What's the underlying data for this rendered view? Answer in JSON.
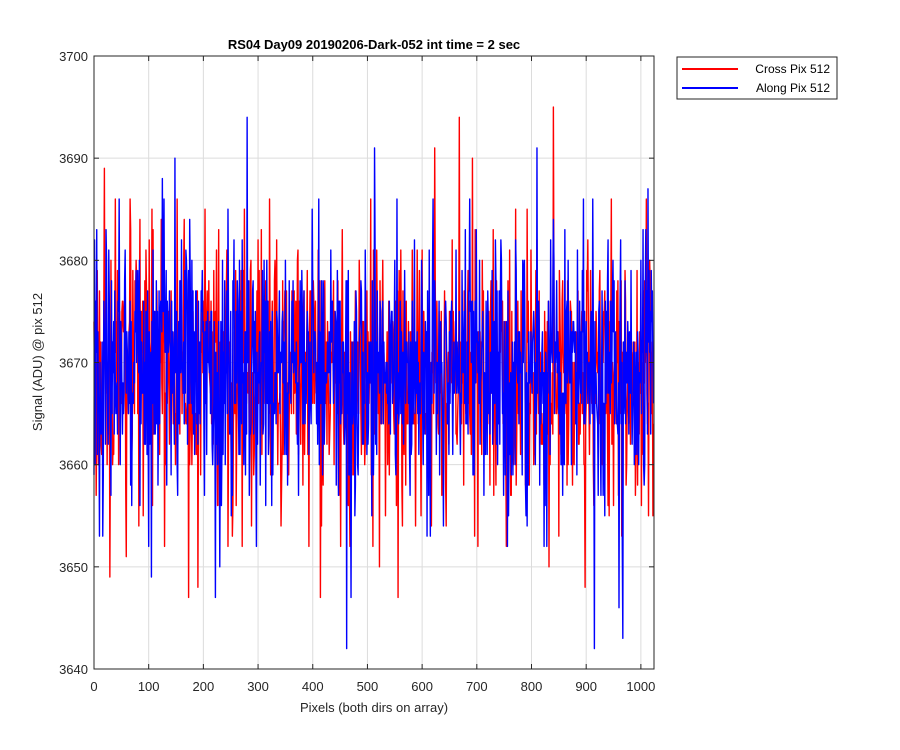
{
  "chart_data": {
    "type": "line",
    "title": "RS04 Day09 20190206-Dark-052 int time = 2 sec",
    "xlabel": "Pixels (both dirs on array)",
    "ylabel": "Signal (ADU) @ pix 512",
    "xlim": [
      0,
      1024
    ],
    "ylim": [
      3640,
      3700
    ],
    "xticks": [
      0,
      100,
      200,
      300,
      400,
      500,
      600,
      700,
      800,
      900,
      1000
    ],
    "yticks": [
      3640,
      3650,
      3660,
      3670,
      3680,
      3690,
      3700
    ],
    "xtick_labels": [
      "0",
      "100",
      "200",
      "300",
      "400",
      "500",
      "600",
      "700",
      "800",
      "900",
      "1000"
    ],
    "ytick_labels": [
      "3640",
      "3650",
      "3660",
      "3670",
      "3680",
      "3690",
      "3700"
    ],
    "grid": true,
    "legend_position": "outside-top-right",
    "noise_model": {
      "n_points": 1024,
      "mean": 3669,
      "std": 6.5
    },
    "series": [
      {
        "name": "Cross Pix 512",
        "color": "#ff0000",
        "seed": 17,
        "peaks": [
          [
            19,
            3689
          ],
          [
            29,
            3649
          ],
          [
            59,
            3651
          ],
          [
            89,
            3676
          ],
          [
            165,
            3684
          ],
          [
            173,
            3647
          ],
          [
            190,
            3648
          ],
          [
            275,
            3685
          ],
          [
            300,
            3682
          ],
          [
            414,
            3647
          ],
          [
            450,
            3668
          ],
          [
            522,
            3650
          ],
          [
            556,
            3647
          ],
          [
            623,
            3691
          ],
          [
            668,
            3694
          ],
          [
            692,
            3690
          ],
          [
            832,
            3650
          ],
          [
            840,
            3695
          ],
          [
            898,
            3648
          ],
          [
            1010,
            3686
          ]
        ]
      },
      {
        "name": "Along Pix 512",
        "color": "#0000ff",
        "seed": 91,
        "peaks": [
          [
            5,
            3683
          ],
          [
            10,
            3653
          ],
          [
            105,
            3649
          ],
          [
            125,
            3688
          ],
          [
            148,
            3690
          ],
          [
            222,
            3647
          ],
          [
            230,
            3650
          ],
          [
            280,
            3694
          ],
          [
            310,
            3664
          ],
          [
            411,
            3686
          ],
          [
            462,
            3642
          ],
          [
            470,
            3647
          ],
          [
            513,
            3691
          ],
          [
            620,
            3686
          ],
          [
            705,
            3680
          ],
          [
            810,
            3691
          ],
          [
            823,
            3652
          ],
          [
            915,
            3642
          ],
          [
            960,
            3646
          ],
          [
            967,
            3643
          ],
          [
            1000,
            3680
          ],
          [
            1013,
            3687
          ]
        ]
      }
    ]
  }
}
